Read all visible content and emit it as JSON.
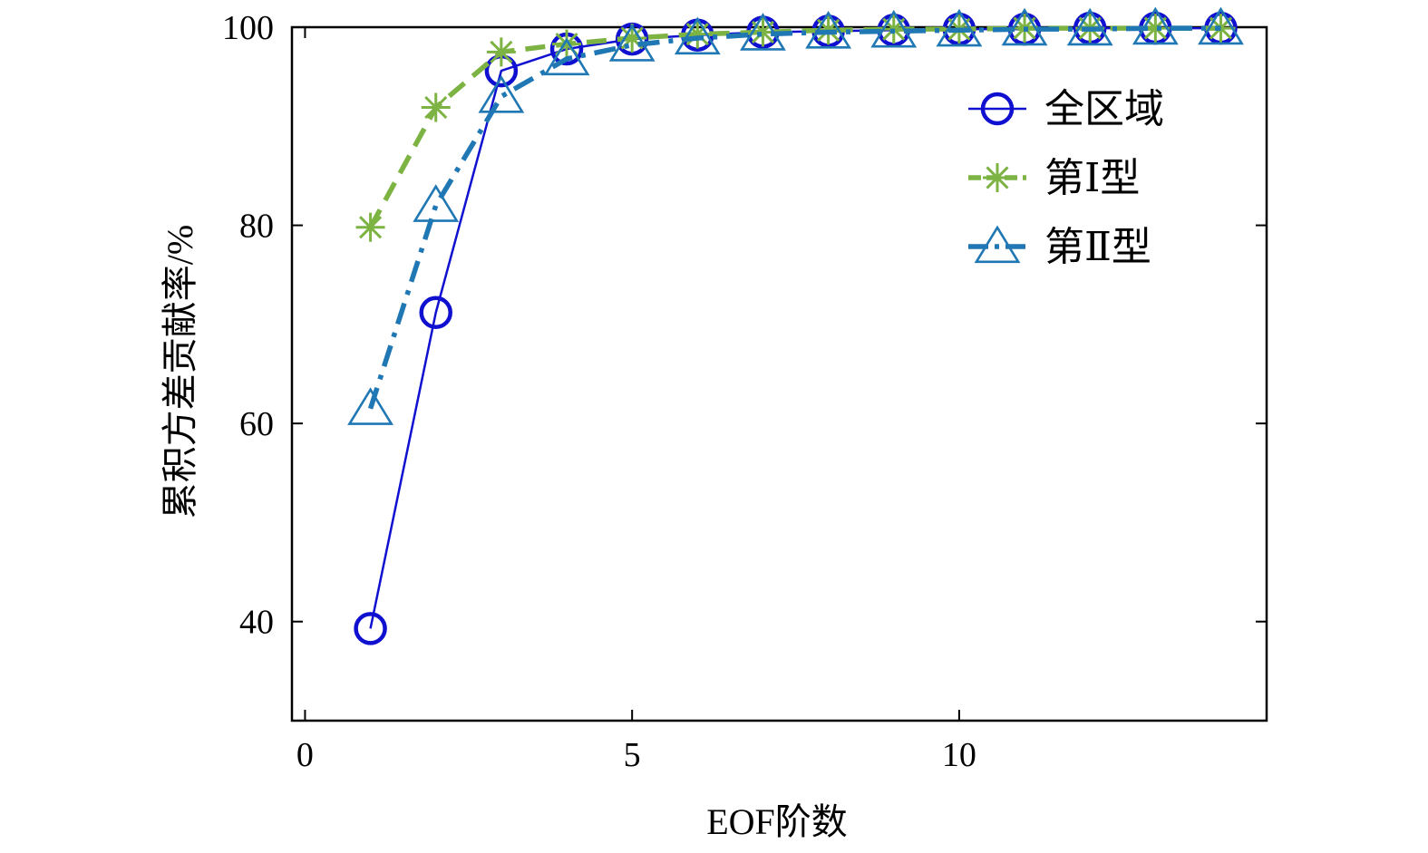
{
  "chart_data": {
    "type": "line",
    "title": "",
    "xlabel": "EOF阶数",
    "ylabel": "累积方差贡献率/%",
    "xlim": [
      -0.2,
      14.7
    ],
    "ylim": [
      30,
      100
    ],
    "xticks": [
      0,
      5,
      10
    ],
    "yticks": [
      40,
      60,
      80,
      100
    ],
    "grid": false,
    "legend_position": "top-right",
    "x": [
      1,
      2,
      3,
      4,
      5,
      6,
      7,
      8,
      9,
      10,
      11,
      12,
      13,
      14
    ],
    "series": [
      {
        "name": "全区域",
        "color": "#1010d0",
        "marker": "circle",
        "line_style": "solid",
        "values": [
          39.3,
          71.2,
          95.6,
          97.8,
          98.8,
          99.2,
          99.5,
          99.6,
          99.7,
          99.8,
          99.8,
          99.9,
          99.9,
          99.9
        ]
      },
      {
        "name": "第Ⅰ型",
        "color": "#7cb342",
        "marker": "asterisk",
        "line_style": "dashed",
        "values": [
          79.8,
          91.9,
          97.5,
          98.3,
          98.9,
          99.3,
          99.5,
          99.7,
          99.8,
          99.8,
          99.9,
          99.9,
          99.9,
          99.9
        ]
      },
      {
        "name": "第Ⅱ型",
        "color": "#1f77b4",
        "marker": "triangle",
        "line_style": "dashdot",
        "values": [
          61.5,
          82.0,
          93.0,
          96.8,
          98.2,
          98.9,
          99.3,
          99.5,
          99.6,
          99.7,
          99.8,
          99.8,
          99.9,
          99.9
        ]
      }
    ]
  }
}
